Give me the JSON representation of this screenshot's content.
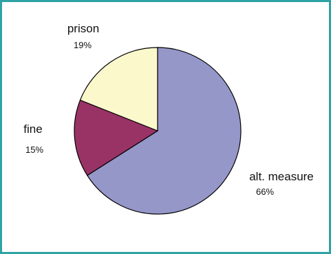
{
  "theme": {
    "frame_color": "#2ea3a3"
  },
  "chart_data": {
    "type": "pie",
    "categories": [
      "alt. measure",
      "fine",
      "prison"
    ],
    "values": [
      66,
      15,
      19
    ],
    "value_labels": [
      "66%",
      "15%",
      "19%"
    ],
    "colors": [
      "#9597c9",
      "#993366",
      "#fbf8cc"
    ],
    "start": "12 o'clock, clockwise"
  }
}
